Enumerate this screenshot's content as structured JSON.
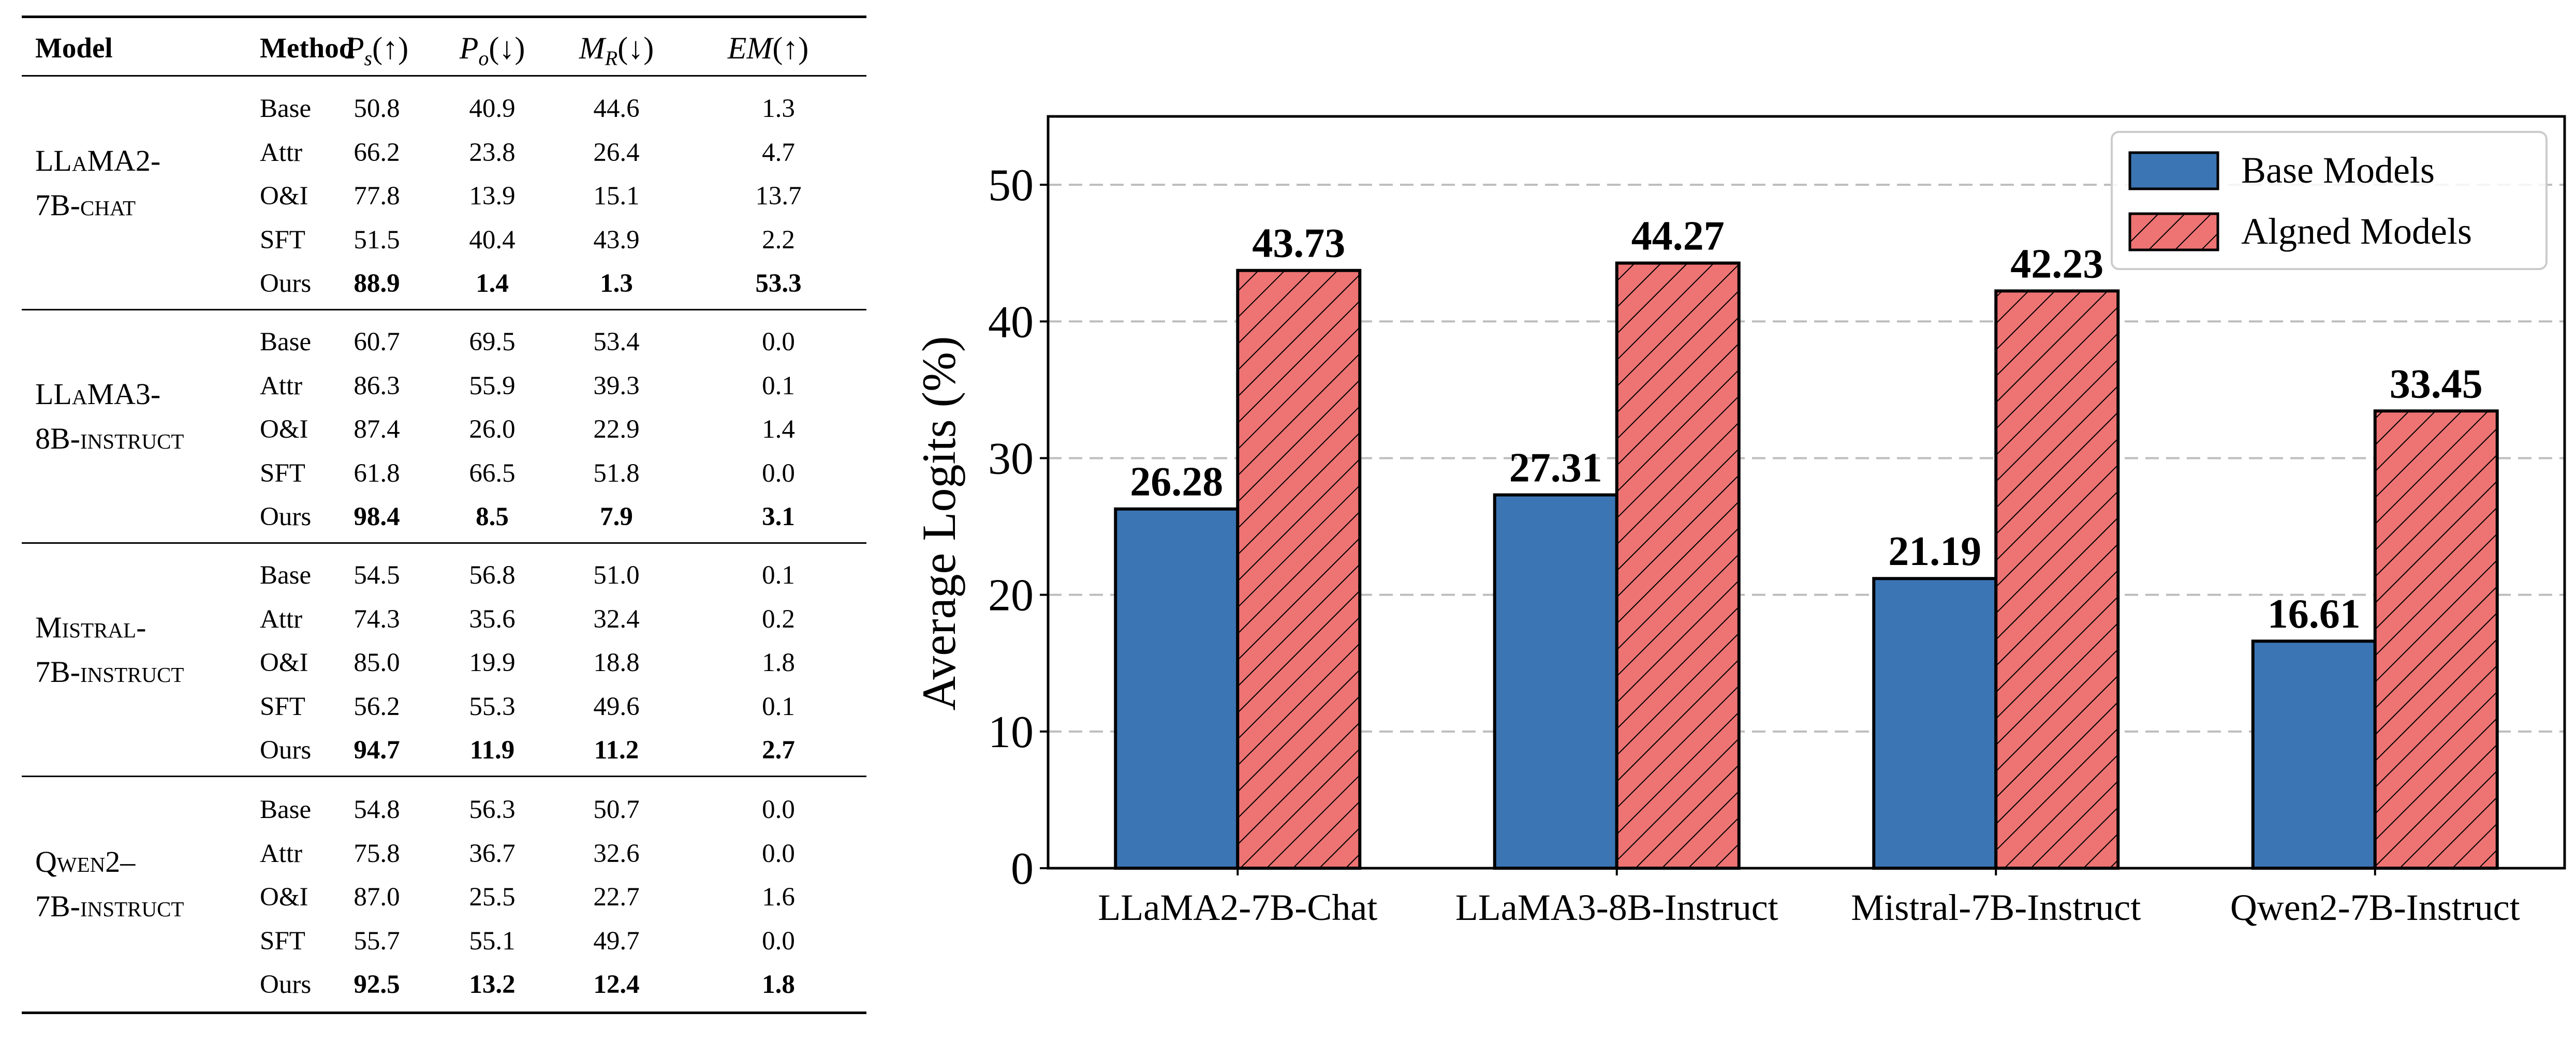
{
  "table": {
    "headers": {
      "model": "Model",
      "method": "Method",
      "ps_sym": "P",
      "ps_sub": "s",
      "ps_arrow": "(↑)",
      "po_sym": "P",
      "po_sub": "o",
      "po_arrow": "(↓)",
      "mr_sym": "M",
      "mr_sub": "R",
      "mr_arrow": "(↓)",
      "em_sym": "EM",
      "em_arrow": "(↑)"
    },
    "groups": [
      {
        "model_line1": "LLaMA2-",
        "model_line2": "7B-chat",
        "rows": [
          {
            "method": "Base",
            "ps": "50.8",
            "po": "40.9",
            "mr": "44.6",
            "em": "1.3"
          },
          {
            "method": "Attr",
            "ps": "66.2",
            "po": "23.8",
            "mr": "26.4",
            "em": "4.7"
          },
          {
            "method": "O&I",
            "ps": "77.8",
            "po": "13.9",
            "mr": "15.1",
            "em": "13.7"
          },
          {
            "method": "SFT",
            "ps": "51.5",
            "po": "40.4",
            "mr": "43.9",
            "em": "2.2"
          },
          {
            "method": "Ours",
            "ps": "88.9",
            "po": "1.4",
            "mr": "1.3",
            "em": "53.3"
          }
        ]
      },
      {
        "model_line1": "LLaMA3-",
        "model_line2": "8B-instruct",
        "rows": [
          {
            "method": "Base",
            "ps": "60.7",
            "po": "69.5",
            "mr": "53.4",
            "em": "0.0"
          },
          {
            "method": "Attr",
            "ps": "86.3",
            "po": "55.9",
            "mr": "39.3",
            "em": "0.1"
          },
          {
            "method": "O&I",
            "ps": "87.4",
            "po": "26.0",
            "mr": "22.9",
            "em": "1.4"
          },
          {
            "method": "SFT",
            "ps": "61.8",
            "po": "66.5",
            "mr": "51.8",
            "em": "0.0"
          },
          {
            "method": "Ours",
            "ps": "98.4",
            "po": "8.5",
            "mr": "7.9",
            "em": "3.1"
          }
        ]
      },
      {
        "model_line1": "Mistral-",
        "model_line2": "7B-instruct",
        "rows": [
          {
            "method": "Base",
            "ps": "54.5",
            "po": "56.8",
            "mr": "51.0",
            "em": "0.1"
          },
          {
            "method": "Attr",
            "ps": "74.3",
            "po": "35.6",
            "mr": "32.4",
            "em": "0.2"
          },
          {
            "method": "O&I",
            "ps": "85.0",
            "po": "19.9",
            "mr": "18.8",
            "em": "1.8"
          },
          {
            "method": "SFT",
            "ps": "56.2",
            "po": "55.3",
            "mr": "49.6",
            "em": "0.1"
          },
          {
            "method": "Ours",
            "ps": "94.7",
            "po": "11.9",
            "mr": "11.2",
            "em": "2.7"
          }
        ]
      },
      {
        "model_line1": "Qwen2–",
        "model_line2": "7B-instruct",
        "rows": [
          {
            "method": "Base",
            "ps": "54.8",
            "po": "56.3",
            "mr": "50.7",
            "em": "0.0"
          },
          {
            "method": "Attr",
            "ps": "75.8",
            "po": "36.7",
            "mr": "32.6",
            "em": "0.0"
          },
          {
            "method": "O&I",
            "ps": "87.0",
            "po": "25.5",
            "mr": "22.7",
            "em": "1.6"
          },
          {
            "method": "SFT",
            "ps": "55.7",
            "po": "55.1",
            "mr": "49.7",
            "em": "0.0"
          },
          {
            "method": "Ours",
            "ps": "92.5",
            "po": "13.2",
            "mr": "12.4",
            "em": "1.8"
          }
        ]
      }
    ]
  },
  "chart_data": {
    "type": "bar",
    "categories": [
      "LLaMA2-7B-Chat",
      "LLaMA3-8B-Instruct",
      "Mistral-7B-Instruct",
      "Qwen2-7B-Instruct"
    ],
    "series": [
      {
        "name": "Base Models",
        "values": [
          26.28,
          27.31,
          21.19,
          16.61
        ],
        "color": "#3b75b4",
        "hatch": false
      },
      {
        "name": "Algned Models",
        "values": [
          43.73,
          44.27,
          42.23,
          33.45
        ],
        "color": "#ee7373",
        "hatch": true
      }
    ],
    "value_labels": [
      [
        "26.28",
        "27.31",
        "21.19",
        "16.61"
      ],
      [
        "43.73",
        "44.27",
        "42.23",
        "33.45"
      ]
    ],
    "ylabel": "Average Logits (%)",
    "yticks": [
      0,
      10,
      20,
      30,
      40,
      50
    ],
    "ylim": [
      0,
      55
    ],
    "grid": "horizontal dashed",
    "legend_position": "top-right"
  }
}
